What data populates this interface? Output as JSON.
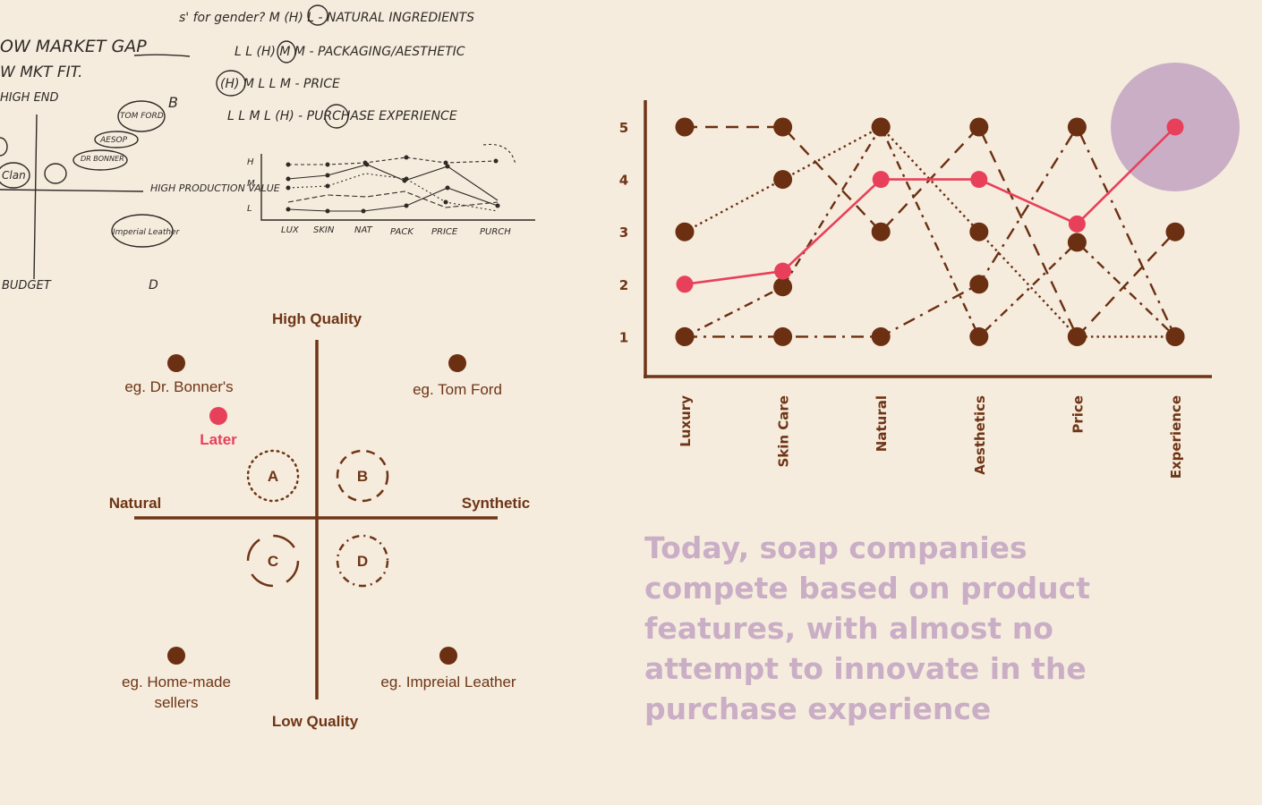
{
  "sketch": {
    "lines": [
      "s' for gender? M (H) L - NATURAL INGREDIENTS",
      "L L (H) M M - PACKAGING/AESTHETIC",
      "(H) M L L M - PRICE",
      "L L M L (H) - PURCHASE EXPERIENCE"
    ],
    "market_gap": "OW MARKET GAP",
    "mkt_fit": "W MKT FIT.",
    "high_end": "HIGH END",
    "budget": "BUDGET",
    "label_b": "B",
    "label_d": "D",
    "tom_ford": "TOM FORD",
    "aesop": "AESOP",
    "dr_bonner": "DR BONNER",
    "clan": "Clan",
    "high_production": "HIGH PRODUCTION VALUE",
    "imperial_leather": "Imperial Leather",
    "mini_y": [
      "H",
      "M",
      "L"
    ],
    "mini_x": [
      "LUX",
      "SKIN",
      "NAT",
      "PACK",
      "PRICE",
      "PURCH"
    ]
  },
  "positioning": {
    "top_label": "High Quality",
    "bottom_label": "Low Quality",
    "left_label": "Natural",
    "right_label": "Synthetic",
    "examples": {
      "top_left": "eg. Dr. Bonner's",
      "top_right": "eg. Tom Ford",
      "later": "Later",
      "bottom_left_1": "eg. Home-made",
      "bottom_left_2": "sellers",
      "bottom_right": "eg. Impreial Leather"
    },
    "zones": [
      "A",
      "B",
      "C",
      "D"
    ]
  },
  "colors": {
    "brown": "#6e3516",
    "dot": "#6b2f12",
    "accent": "#e8405a",
    "highlight": "#c9aec6",
    "background": "#f6ecdd"
  },
  "chart_data": {
    "type": "line",
    "categories": [
      "Luxury",
      "Skin Care",
      "Natural",
      "Aesthetics",
      "Price",
      "Experience"
    ],
    "ylim": [
      1,
      5
    ],
    "y_ticks": [
      1,
      2,
      3,
      4,
      5
    ],
    "series": [
      {
        "style": "dashed",
        "values": [
          5,
          5,
          3,
          5,
          1,
          3
        ]
      },
      {
        "style": "dotted",
        "values": [
          3,
          4,
          5,
          3,
          1,
          1
        ]
      },
      {
        "style": "dashdot",
        "values": [
          1,
          1,
          1,
          2,
          5,
          1
        ]
      },
      {
        "style": "dashdot-long",
        "values": [
          1,
          1.95,
          5,
          1,
          2.8,
          1
        ]
      },
      {
        "style": "highlight",
        "values": [
          2,
          2.25,
          4,
          4,
          3.15,
          5
        ]
      }
    ],
    "highlight_point": {
      "category": "Experience",
      "value": 5
    }
  },
  "caption": "Today, soap companies compete based on product features, with almost no attempt to innovate in the purchase experience"
}
